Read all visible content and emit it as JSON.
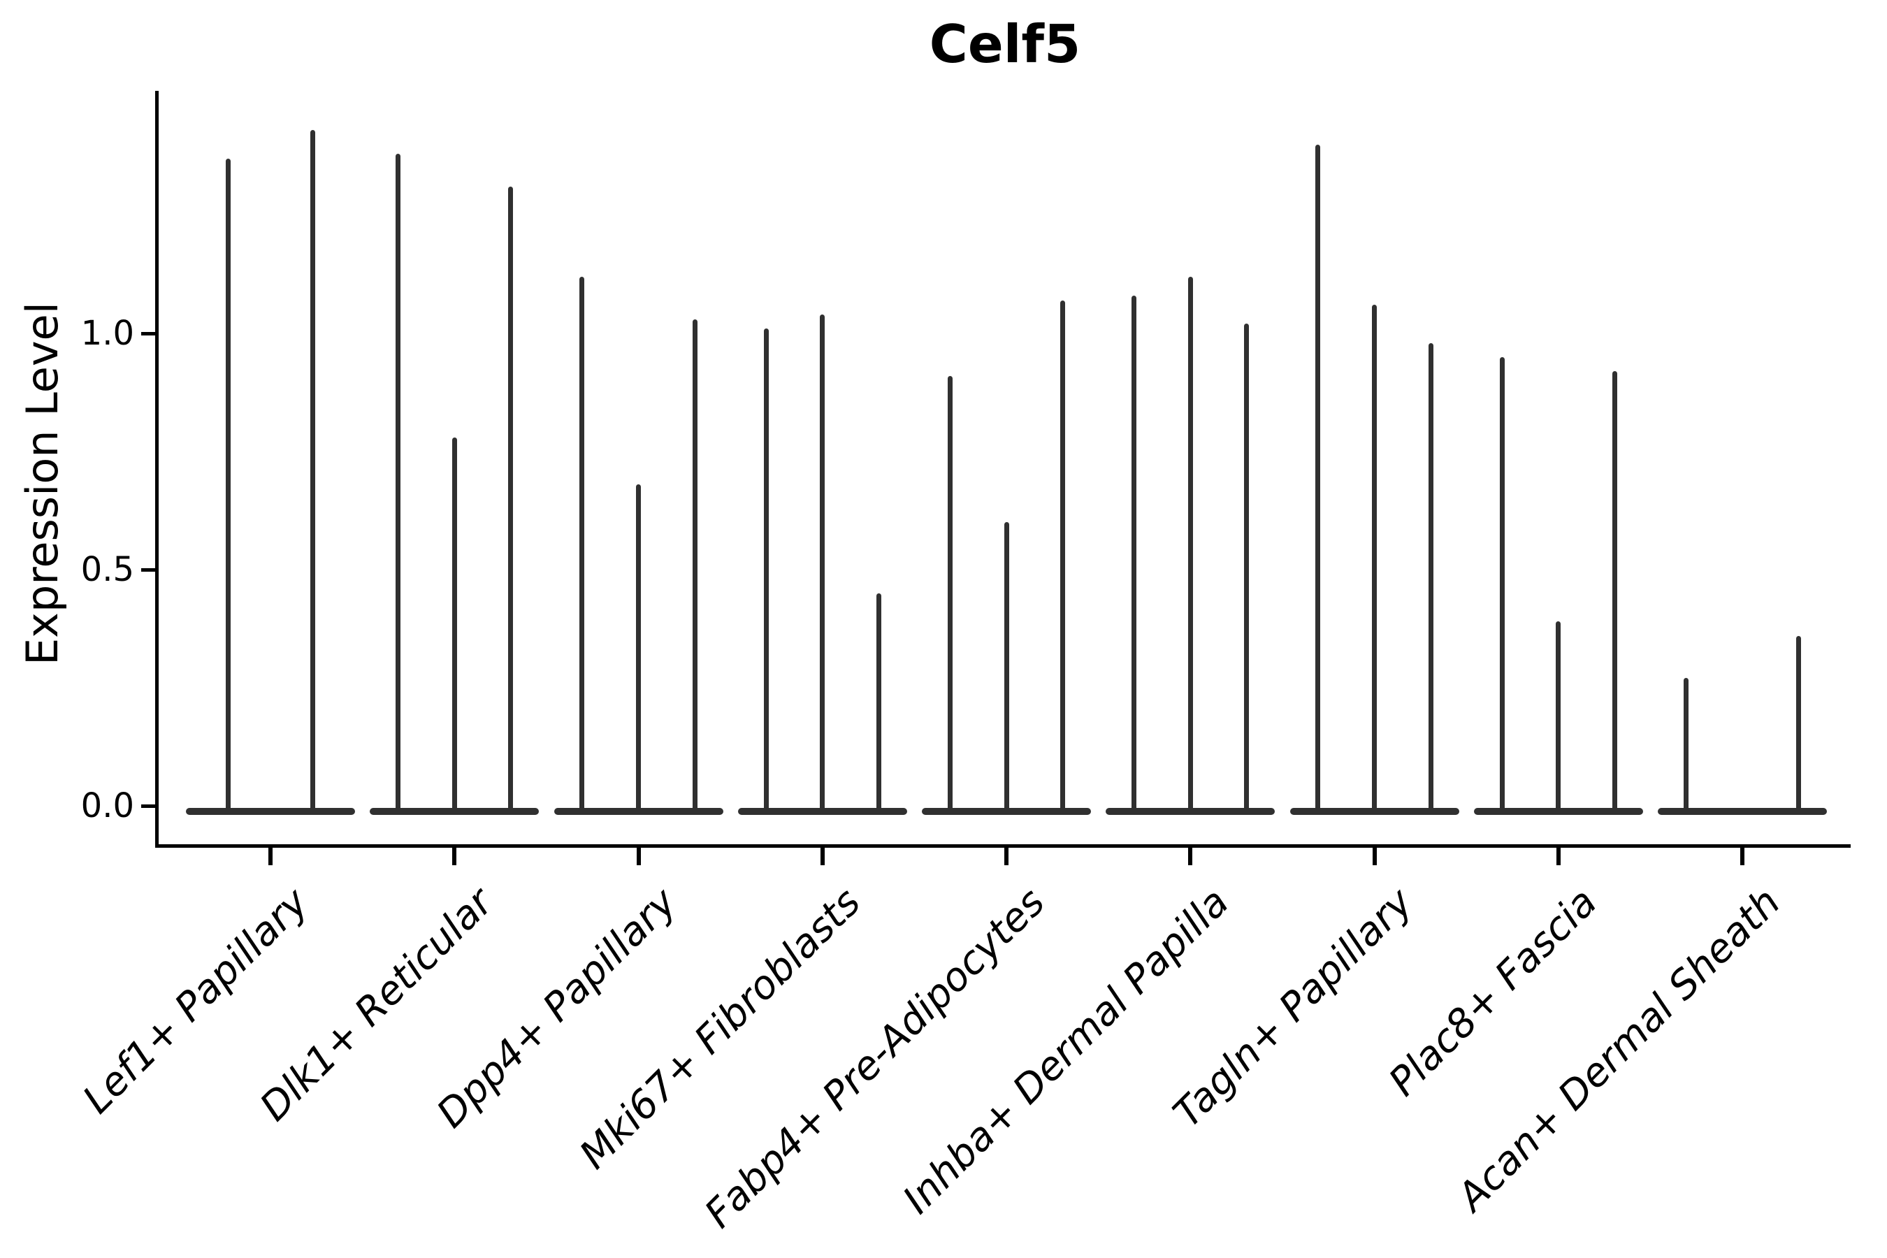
{
  "chart_data": {
    "type": "violin",
    "title": "Celf5",
    "xlabel": "",
    "ylabel": "Expression Level",
    "yticks": [
      0.0,
      0.5,
      1.0
    ],
    "ytick_labels": [
      "0.0",
      "0.5",
      "1.0"
    ],
    "ylim": [
      -0.08,
      1.53
    ],
    "grid": false,
    "legend": null,
    "background_color": "#ffffff",
    "axis_color": "#000000",
    "violin_color": "#303030",
    "description": "Violin plot of Celf5 expression per fibroblast cluster; each cluster holds 2-3 very thin violins whose probability mass sits at 0 (wide flat base) with a narrow spike rising to the maximum expression value.",
    "categories": [
      "Lef1+ Papillary",
      "Dlk1+ Reticular",
      "Dpp4+ Papillary",
      "Mki67+ Fibroblasts",
      "Fabp4+ Pre-Adipocytes",
      "Inhba+ Dermal Papilla",
      "Tagln+ Papillary",
      "Plac8+ Fascia",
      "Acan+ Dermal Sheath"
    ],
    "series": [
      {
        "name": "Lef1+ Papillary",
        "violin_max": [
          1.37,
          1.43
        ]
      },
      {
        "name": "Dlk1+ Reticular",
        "violin_max": [
          1.38,
          0.78,
          1.31
        ]
      },
      {
        "name": "Dpp4+ Papillary",
        "violin_max": [
          1.12,
          0.68,
          1.03
        ]
      },
      {
        "name": "Mki67+ Fibroblasts",
        "violin_max": [
          1.01,
          1.04,
          0.45
        ]
      },
      {
        "name": "Fabp4+ Pre-Adipocytes",
        "violin_max": [
          0.91,
          0.6,
          1.07
        ]
      },
      {
        "name": "Inhba+ Dermal Papilla",
        "violin_max": [
          1.08,
          1.12,
          1.02
        ]
      },
      {
        "name": "Tagln+ Papillary",
        "violin_max": [
          1.4,
          1.06,
          0.98
        ]
      },
      {
        "name": "Plac8+ Fascia",
        "violin_max": [
          0.95,
          0.39,
          0.92
        ]
      },
      {
        "name": "Acan+ Dermal Sheath",
        "violin_max": [
          0.27,
          0,
          0.36
        ]
      }
    ],
    "baseline_mass_at_zero": true
  }
}
